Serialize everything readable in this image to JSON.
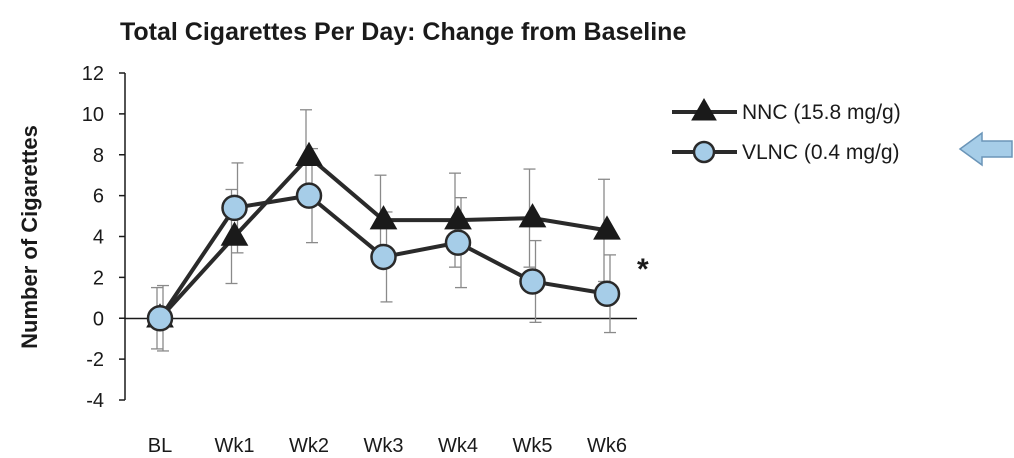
{
  "chart_data": {
    "type": "line",
    "title": "Total Cigarettes Per Day: Change from Baseline",
    "xlabel": "",
    "ylabel": "Number of Cigarettes",
    "categories": [
      "BL",
      "Wk1",
      "Wk2",
      "Wk3",
      "Wk4",
      "Wk5",
      "Wk6"
    ],
    "ylim": [
      -4,
      12
    ],
    "yticks": [
      "12",
      "10",
      "8",
      "6",
      "4",
      "2",
      "0",
      "-2",
      "-4"
    ],
    "grid": false,
    "legend_position": "top-right",
    "significance_marker": "*",
    "series": [
      {
        "name": "NNC (15.8 mg/g)",
        "marker": "triangle",
        "color": "#1a1a1a",
        "values": [
          0,
          4.0,
          7.9,
          4.8,
          4.8,
          4.9,
          4.3
        ],
        "error": [
          1.5,
          2.3,
          2.3,
          2.2,
          2.3,
          2.4,
          2.5
        ]
      },
      {
        "name": "VLNC (0.4 mg/g)",
        "marker": "circle",
        "color": "#a6cde8",
        "values": [
          0,
          5.4,
          6.0,
          3.0,
          3.7,
          1.8,
          1.2
        ],
        "error": [
          1.6,
          2.2,
          2.3,
          2.2,
          2.2,
          2.0,
          1.9
        ]
      }
    ]
  },
  "annotation": {
    "arrow": "left-pointing-arrow",
    "arrow_color": "#a6cde8"
  }
}
